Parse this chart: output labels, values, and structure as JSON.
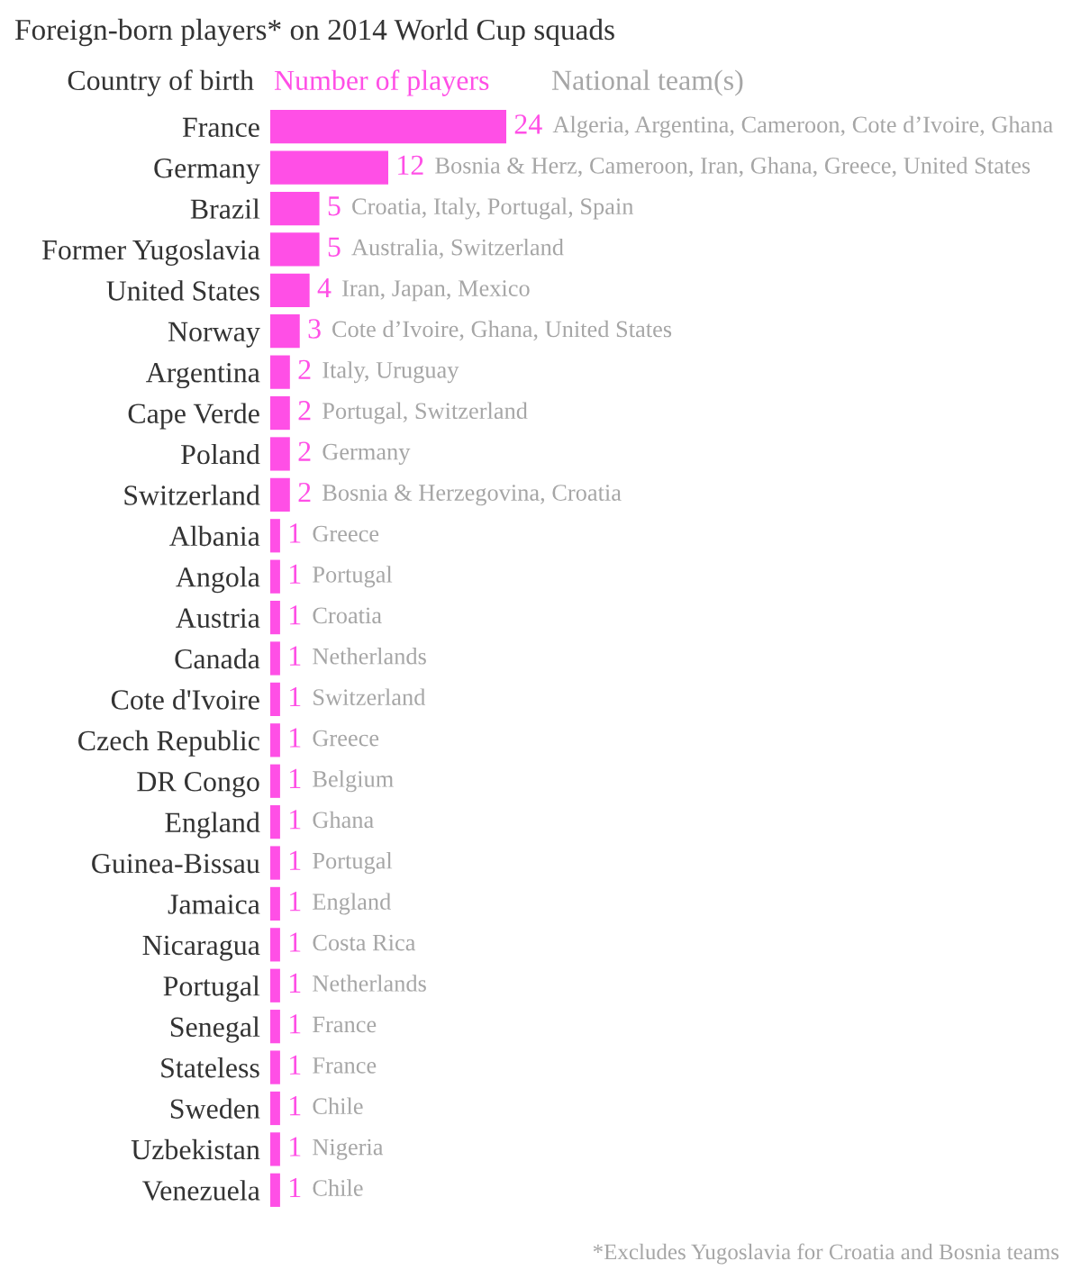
{
  "chart_data": {
    "type": "bar",
    "orientation": "horizontal",
    "title": "Foreign-born players* on 2014 World Cup squads",
    "categories": [
      "France",
      "Germany",
      "Brazil",
      "Former Yugoslavia",
      "United States",
      "Norway",
      "Argentina",
      "Cape Verde",
      "Poland",
      "Switzerland",
      "Albania",
      "Angola",
      "Austria",
      "Canada",
      "Cote d'Ivoire",
      "Czech Republic",
      "DR Congo",
      "England",
      "Guinea-Bissau",
      "Jamaica",
      "Nicaragua",
      "Portugal",
      "Senegal",
      "Stateless",
      "Sweden",
      "Uzbekistan",
      "Venezuela"
    ],
    "values": [
      24,
      12,
      5,
      5,
      4,
      3,
      2,
      2,
      2,
      2,
      1,
      1,
      1,
      1,
      1,
      1,
      1,
      1,
      1,
      1,
      1,
      1,
      1,
      1,
      1,
      1,
      1
    ],
    "color": "#ff4fe6",
    "data_labels": true,
    "tick_labels": "y",
    "annotations": [
      "Country of birth",
      "Number of players",
      "National team(s)",
      "*Excludes Yugoslavia for Croatia and Bosnia teams",
      {
        "text": "Algeria, Argentina, Cameroon, Cote d’Ivoire, Ghana",
        "x": 24,
        "y": "France"
      },
      {
        "text": "Bosnia & Herz, Cameroon, Iran, Ghana, Greece, United States",
        "x": 12,
        "y": "Germany"
      },
      {
        "text": "Croatia, Italy, Portugal, Spain",
        "x": 5,
        "y": "Brazil"
      },
      {
        "text": "Australia, Switzerland",
        "x": 5,
        "y": "Former Yugoslavia"
      },
      {
        "text": "Iran, Japan, Mexico",
        "x": 4,
        "y": "United States"
      },
      {
        "text": "Cote d’Ivoire, Ghana, United States",
        "x": 3,
        "y": "Norway"
      },
      {
        "text": "Italy, Uruguay",
        "x": 2,
        "y": "Argentina"
      },
      {
        "text": "Portugal, Switzerland",
        "x": 2,
        "y": "Cape Verde"
      },
      {
        "text": "Germany",
        "x": 2,
        "y": "Poland"
      },
      {
        "text": "Bosnia & Herzegovina, Croatia",
        "x": 2,
        "y": "Switzerland"
      },
      {
        "text": "Greece",
        "x": 1,
        "y": "Albania"
      },
      {
        "text": "Portugal",
        "x": 1,
        "y": "Angola"
      },
      {
        "text": "Croatia",
        "x": 1,
        "y": "Austria"
      },
      {
        "text": "Netherlands",
        "x": 1,
        "y": "Canada"
      },
      {
        "text": "Switzerland",
        "x": 1,
        "y": "Cote d'Ivoire"
      },
      {
        "text": "Greece",
        "x": 1,
        "y": "Czech Republic"
      },
      {
        "text": "Belgium",
        "x": 1,
        "y": "DR Congo"
      },
      {
        "text": "Ghana",
        "x": 1,
        "y": "England"
      },
      {
        "text": "Portugal",
        "x": 1,
        "y": "Guinea-Bissau"
      },
      {
        "text": "England",
        "x": 1,
        "y": "Jamaica"
      },
      {
        "text": "Costa Rica",
        "x": 1,
        "y": "Nicaragua"
      },
      {
        "text": "Netherlands",
        "x": 1,
        "y": "Portugal"
      },
      {
        "text": "France",
        "x": 1,
        "y": "Senegal"
      },
      {
        "text": "France",
        "x": 1,
        "y": "Stateless"
      },
      {
        "text": "Chile",
        "x": 1,
        "y": "Sweden"
      },
      {
        "text": "Nigeria",
        "x": 1,
        "y": "Uzbekistan"
      },
      {
        "text": "Chile",
        "x": 1,
        "y": "Venezuela"
      }
    ]
  }
}
